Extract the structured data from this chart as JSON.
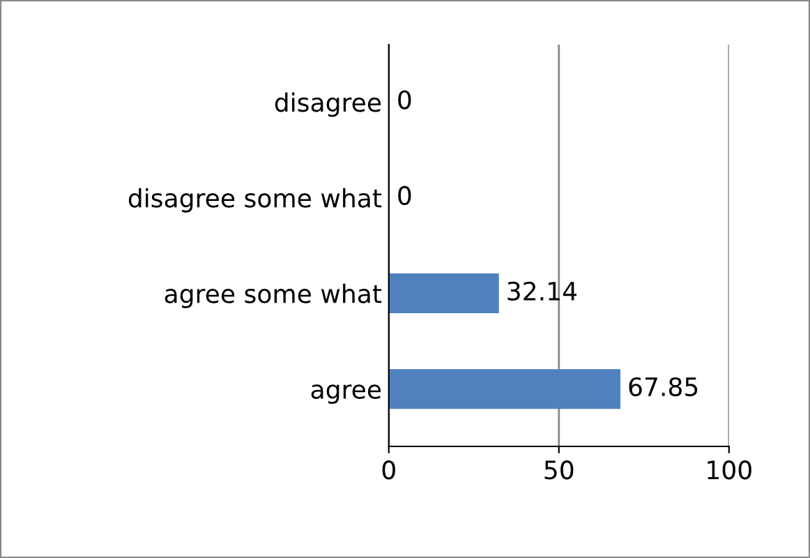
{
  "chart_data": {
    "type": "bar",
    "orientation": "horizontal",
    "categories": [
      "disagree",
      "disagree some what",
      "agree some what",
      "agree"
    ],
    "values": [
      0,
      0,
      32.14,
      67.85
    ],
    "color": "#4f81bd",
    "xlim": [
      0,
      100
    ],
    "xticks": [
      0,
      50,
      100
    ],
    "grid": "x",
    "data_labels": true
  }
}
